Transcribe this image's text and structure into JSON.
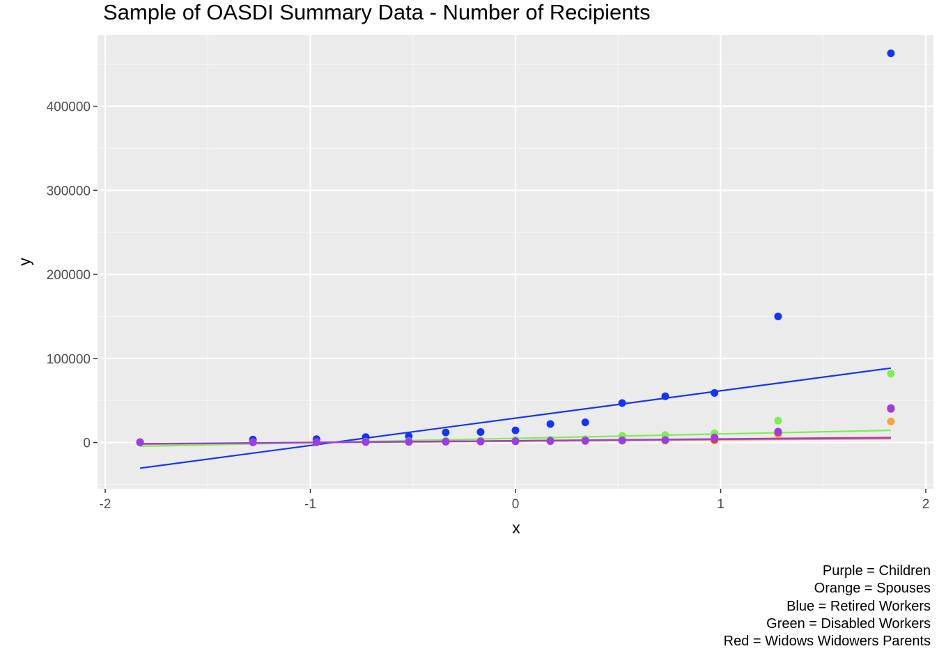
{
  "chart_data": {
    "type": "scatter",
    "title": "Sample of OASDI Summary Data - Number of Recipients",
    "xlabel": "x",
    "ylabel": "y",
    "xlim": [
      -2.0,
      2.0
    ],
    "ylim": [
      -55000,
      485000
    ],
    "x_ticks": [
      {
        "value": -2,
        "label": "-2"
      },
      {
        "value": -1,
        "label": "-1"
      },
      {
        "value": 0,
        "label": "0"
      },
      {
        "value": 1,
        "label": "1"
      },
      {
        "value": 2,
        "label": "2"
      }
    ],
    "y_ticks": [
      {
        "value": 0,
        "label": "0"
      },
      {
        "value": 100000,
        "label": "100000"
      },
      {
        "value": 200000,
        "label": "200000"
      },
      {
        "value": 300000,
        "label": "300000"
      },
      {
        "value": 400000,
        "label": "400000"
      }
    ],
    "grid": true,
    "legend": "bottom-right caption",
    "x": [
      -1.83,
      -1.28,
      -0.97,
      -0.73,
      -0.52,
      -0.34,
      -0.17,
      0.0,
      0.17,
      0.34,
      0.52,
      0.73,
      0.97,
      1.28,
      1.83
    ],
    "series": [
      {
        "color": "#1334ff",
        "values": [
          500,
          3500,
          4000,
          6500,
          7500,
          12000,
          12500,
          14500,
          22000,
          24000,
          47000,
          55000,
          59000,
          150000,
          463000
        ],
        "fit": [
          -30500,
          88500
        ]
      },
      {
        "color": "#7def51",
        "values": [
          300,
          300,
          500,
          1000,
          1500,
          2000,
          2500,
          3000,
          3500,
          4000,
          8000,
          9000,
          11000,
          26000,
          82000
        ],
        "fit": [
          -4500,
          14500
        ]
      },
      {
        "color": "#f5a53b",
        "values": [
          100,
          200,
          300,
          500,
          700,
          900,
          1100,
          1300,
          1500,
          1800,
          2000,
          2300,
          2600,
          10000,
          25000
        ],
        "fit": [
          -1500,
          4500
        ]
      },
      {
        "color": "#e8334f",
        "values": [
          200,
          300,
          400,
          600,
          800,
          1000,
          1200,
          1500,
          1800,
          2100,
          2500,
          2800,
          3500,
          12000,
          40000
        ],
        "fit": [
          -1800,
          6000
        ]
      },
      {
        "color": "#9b3de6",
        "values": [
          300,
          400,
          500,
          700,
          900,
          1100,
          1300,
          1600,
          1900,
          2200,
          2600,
          3000,
          6000,
          13000,
          41000
        ],
        "fit": [
          -1500,
          5500
        ]
      }
    ],
    "caption": [
      "Purple = Children",
      "Orange = Spouses",
      "Blue = Retired Workers",
      "Green = Disabled Workers",
      "Red = Widows Widowers Parents"
    ]
  }
}
